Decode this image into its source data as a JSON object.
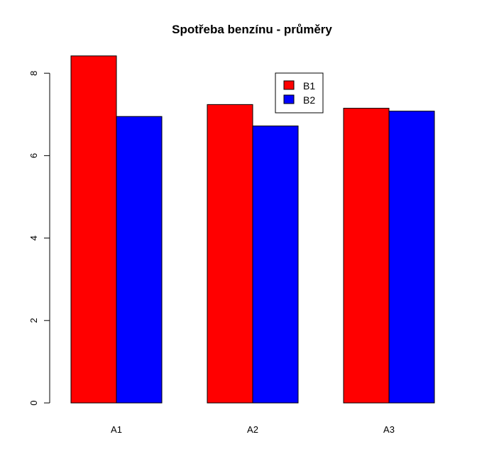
{
  "chart_data": {
    "type": "bar",
    "title": "Spotřeba benzínu - průměry",
    "xlabel": "",
    "ylabel": "",
    "categories": [
      "A1",
      "A2",
      "A3"
    ],
    "series": [
      {
        "name": "B1",
        "values": [
          8.42,
          7.24,
          7.15
        ],
        "color": "#ff0000"
      },
      {
        "name": "B2",
        "values": [
          6.95,
          6.72,
          7.08
        ],
        "color": "#0000ff"
      }
    ],
    "ylim": [
      0,
      8.8
    ],
    "yticks": [
      0,
      2,
      4,
      6,
      8
    ],
    "grid": false,
    "legend_position": "top-center",
    "legend_entries": [
      "B1",
      "B2"
    ]
  }
}
